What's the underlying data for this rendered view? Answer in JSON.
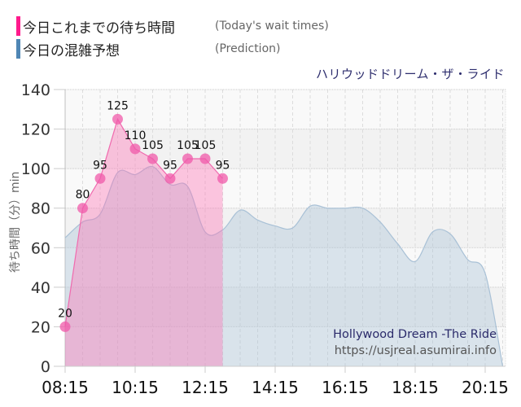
{
  "legend": {
    "items": [
      {
        "label_ja": "今日これまでの待ち時間",
        "label_en": "(Today's wait times)",
        "color": "#ff1a8c"
      },
      {
        "label_ja": "今日の混雑予想",
        "label_en": "(Prediction)",
        "color": "#4f86b5"
      }
    ]
  },
  "ride": {
    "title_ja": "ハリウッドドリーム・ザ・ライド",
    "title_en": "Hollywood Dream -The Ride",
    "url": "https://usjreal.asumirai.info"
  },
  "axis": {
    "ylabel": "待ち時間（分）min"
  },
  "chart_data": {
    "type": "area",
    "title": "ハリウッドドリーム・ザ・ライド",
    "xlabel": "",
    "ylabel": "待ち時間（分）min",
    "ylim": [
      0,
      140
    ],
    "yticks": [
      0,
      20,
      40,
      60,
      80,
      100,
      120,
      140
    ],
    "xtick_labels": [
      "08:15",
      "10:15",
      "12:15",
      "14:15",
      "16:15",
      "18:15",
      "20:15"
    ],
    "grid": true,
    "legend_position": "top-left",
    "series": [
      {
        "name": "今日これまでの待ち時間 (Today's wait times)",
        "color": "#ff69b4",
        "x": [
          "08:15",
          "08:45",
          "09:15",
          "09:45",
          "10:15",
          "10:45",
          "11:15",
          "11:45",
          "12:15",
          "12:45"
        ],
        "values": [
          20,
          80,
          95,
          125,
          110,
          105,
          95,
          105,
          105,
          95
        ],
        "data_labels": true
      },
      {
        "name": "今日の混雑予想 (Prediction)",
        "color": "#a9c1d6",
        "x": [
          "08:15",
          "08:45",
          "09:15",
          "09:45",
          "10:15",
          "10:45",
          "11:15",
          "11:45",
          "12:15",
          "12:45",
          "13:15",
          "13:45",
          "14:15",
          "14:45",
          "15:15",
          "15:45",
          "16:15",
          "16:45",
          "17:15",
          "17:45",
          "18:15",
          "18:45",
          "19:15",
          "19:45",
          "20:15",
          "20:45"
        ],
        "values": [
          65,
          73,
          77,
          98,
          97,
          101,
          92,
          91,
          68,
          69,
          79,
          74,
          71,
          70,
          81,
          80,
          80,
          80,
          73,
          62,
          53,
          68,
          67,
          54,
          47,
          0
        ]
      }
    ],
    "annotations": [
      "Hollywood Dream -The Ride",
      "https://usjreal.asumirai.info"
    ]
  }
}
